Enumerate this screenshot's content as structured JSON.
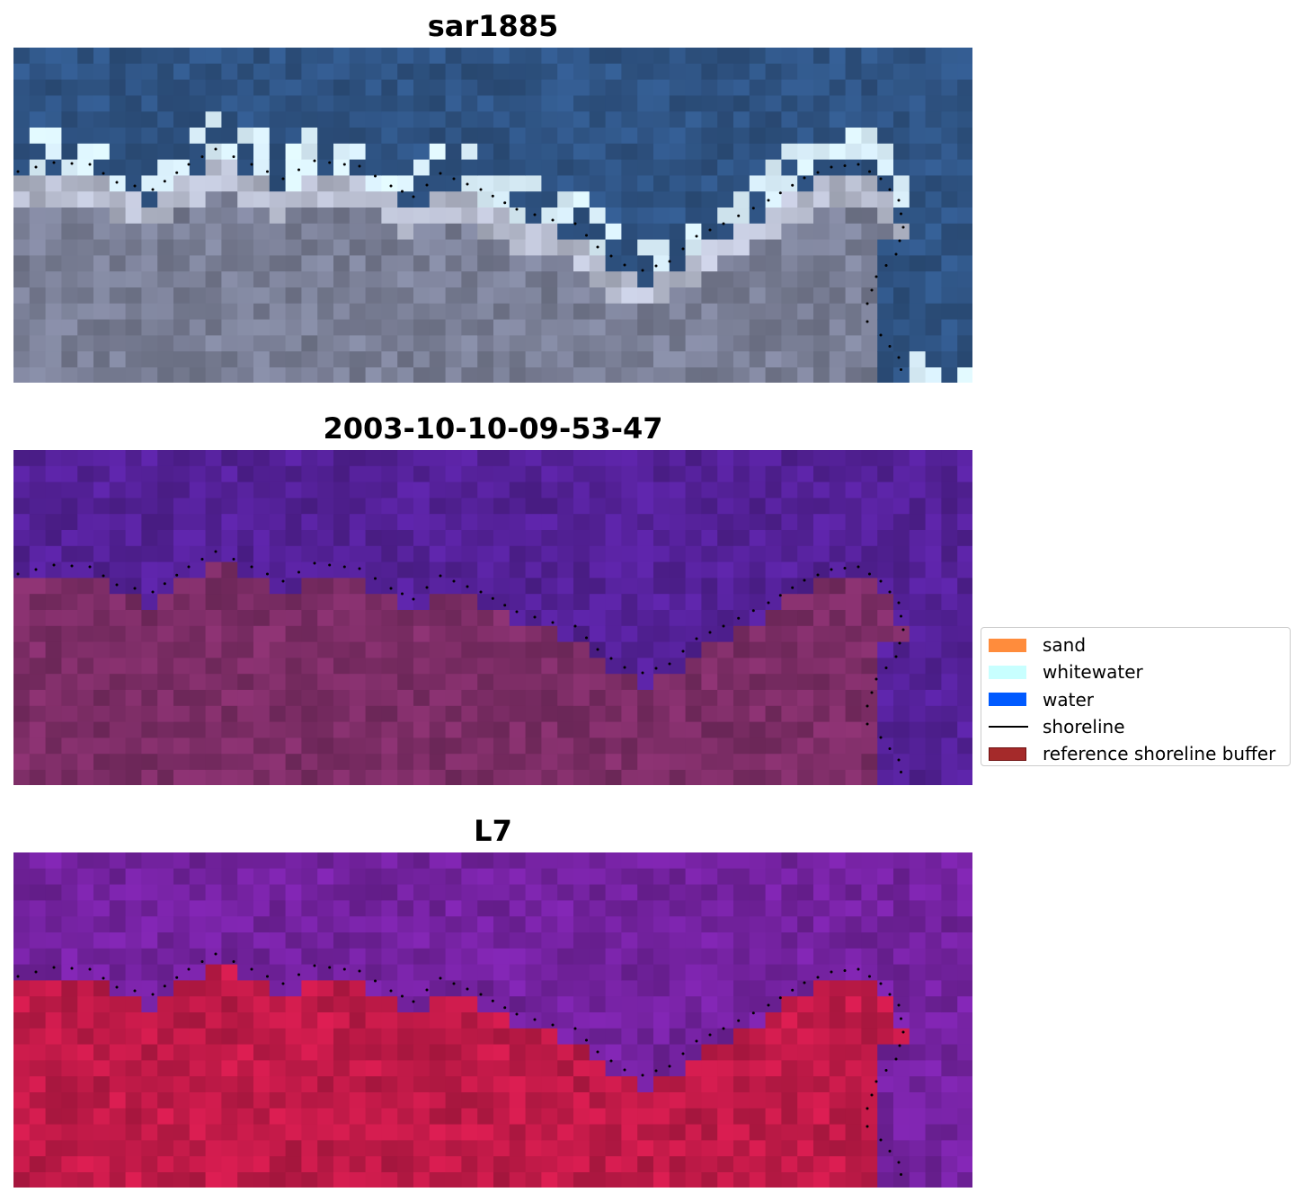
{
  "panels": [
    {
      "title": "sar1885",
      "kind": "rgb"
    },
    {
      "title": "2003-10-10-09-53-47",
      "kind": "classified"
    },
    {
      "title": "L7",
      "kind": "index"
    }
  ],
  "legend": {
    "items": [
      {
        "label": "sand",
        "type": "swatch",
        "color": "#ff8c3c",
        "border": "#ff8c3c"
      },
      {
        "label": "whitewater",
        "type": "swatch",
        "color": "#c8ffff",
        "border": "#c8ffff"
      },
      {
        "label": "water",
        "type": "swatch",
        "color": "#005aff",
        "border": "#005aff"
      },
      {
        "label": "shoreline",
        "type": "line",
        "color": "#000000"
      },
      {
        "label": "reference shoreline buffer",
        "type": "swatch",
        "color": "#a52a2a",
        "border": "#6e1010"
      }
    ]
  },
  "colors": {
    "rgb_water": "#2f5484",
    "rgb_land": "#7a7f96",
    "classified_water": "#542198",
    "classified_land": "#7d2d66",
    "index_water": "#7422a0",
    "index_land": "#c11a48",
    "shoreline_dots": "#000000"
  }
}
